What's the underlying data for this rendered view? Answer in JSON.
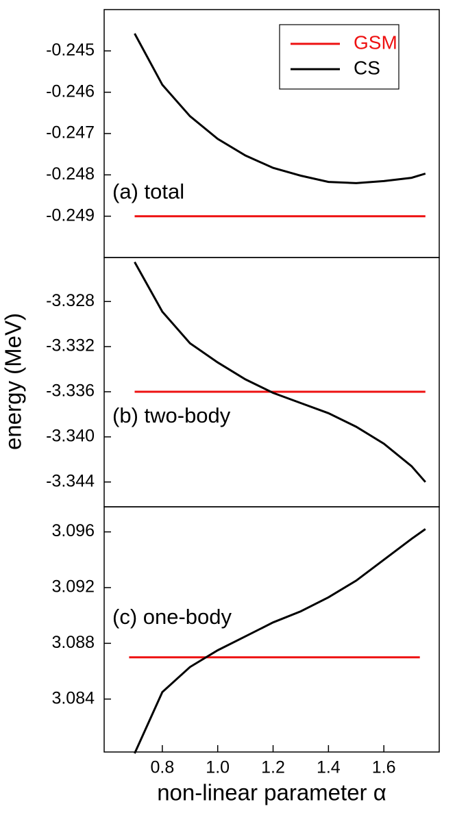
{
  "chart_data": [
    {
      "type": "line",
      "annotation": "(a) total",
      "xlim": [
        0.59,
        1.8
      ],
      "ylim": [
        -0.25,
        -0.244
      ],
      "yticks": [
        -0.245,
        -0.246,
        -0.247,
        -0.248,
        -0.249
      ],
      "series": [
        {
          "name": "GSM",
          "color": "#ee1111",
          "x": [
            0.7,
            1.75
          ],
          "values": [
            -0.249,
            -0.249
          ]
        },
        {
          "name": "CS",
          "color": "#000000",
          "x": [
            0.7,
            0.8,
            0.9,
            1.0,
            1.1,
            1.2,
            1.3,
            1.4,
            1.5,
            1.6,
            1.7,
            1.75
          ],
          "values": [
            -0.24458,
            -0.24582,
            -0.24658,
            -0.24713,
            -0.24753,
            -0.24783,
            -0.24802,
            -0.24817,
            -0.2482,
            -0.24815,
            -0.24807,
            -0.24797
          ]
        }
      ]
    },
    {
      "type": "line",
      "annotation": "(b) two-body",
      "ylabel": "energy (MeV)",
      "xlim": [
        0.59,
        1.8
      ],
      "ylim": [
        -3.3462,
        -3.3241
      ],
      "yticks": [
        -3.328,
        -3.332,
        -3.336,
        {
          "value": -3.34,
          "label": "-3.340"
        },
        -3.344
      ],
      "series": [
        {
          "color": "#ee1111",
          "x": [
            0.7,
            1.75
          ],
          "values": [
            -3.336,
            -3.336
          ]
        },
        {
          "color": "#000000",
          "x": [
            0.7,
            0.8,
            0.9,
            1.0,
            1.1,
            1.2,
            1.3,
            1.4,
            1.5,
            1.6,
            1.7,
            1.75
          ],
          "values": [
            -3.3245,
            -3.3289,
            -3.3317,
            -3.3334,
            -3.3349,
            -3.3361,
            -3.337,
            -3.3379,
            -3.3391,
            -3.3406,
            -3.3426,
            -3.344
          ]
        }
      ]
    },
    {
      "type": "line",
      "annotation": "(c) one-body",
      "xlabel": "non-linear parameter α",
      "xlim": [
        0.59,
        1.8
      ],
      "ylim": [
        3.0802,
        3.0978
      ],
      "xticks": [
        0.8,
        {
          "value": 1.0,
          "label": "1.0"
        },
        1.2,
        1.4,
        1.6
      ],
      "yticks": [
        3.096,
        3.092,
        3.088,
        3.084
      ],
      "series": [
        {
          "color": "#ee1111",
          "x": [
            0.68,
            1.73
          ],
          "values": [
            3.087,
            3.087
          ]
        },
        {
          "color": "#000000",
          "x": [
            0.7,
            0.8,
            0.9,
            1.0,
            1.1,
            1.2,
            1.3,
            1.4,
            1.5,
            1.6,
            1.7,
            1.75
          ],
          "values": [
            3.0801,
            3.0845,
            3.0863,
            3.0875,
            3.0885,
            3.0895,
            3.0903,
            3.0913,
            3.0925,
            3.094,
            3.0955,
            3.0962
          ]
        }
      ]
    }
  ]
}
